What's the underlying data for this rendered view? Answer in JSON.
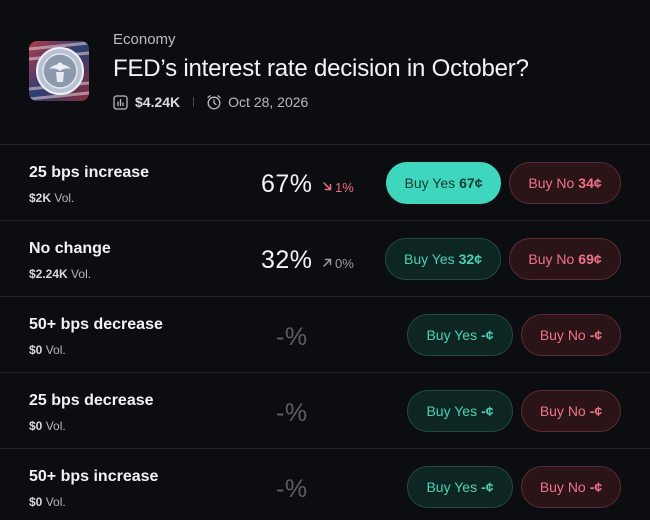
{
  "market": {
    "category": "Economy",
    "title": "FED’s interest rate decision in October?",
    "volume": "$4.24K",
    "date": "Oct 28, 2026",
    "icons": {
      "volume": "chart-bar-icon",
      "date": "alarm-clock-icon"
    }
  },
  "vol_suffix": "Vol.",
  "yes_label": "Buy Yes",
  "no_label": "Buy No",
  "outcomes": [
    {
      "name": "25 bps increase",
      "volume": "$2K",
      "pct": "67%",
      "change": "1%",
      "change_dir": "down",
      "yes_price": "67¢",
      "no_price": "34¢"
    },
    {
      "name": "No change",
      "volume": "$2.24K",
      "pct": "32%",
      "change": "0%",
      "change_dir": "up",
      "yes_price": "32¢",
      "no_price": "69¢"
    },
    {
      "name": "50+ bps decrease",
      "volume": "$0",
      "pct": "-%",
      "yes_price": "-¢",
      "no_price": "-¢"
    },
    {
      "name": "25 bps decrease",
      "volume": "$0",
      "pct": "-%",
      "yes_price": "-¢",
      "no_price": "-¢"
    },
    {
      "name": "50+ bps increase",
      "volume": "$0",
      "pct": "-%",
      "yes_price": "-¢",
      "no_price": "-¢"
    }
  ],
  "colors": {
    "yes": "#3ed6bd",
    "no": "#ef7487",
    "background": "#0c0d10"
  }
}
